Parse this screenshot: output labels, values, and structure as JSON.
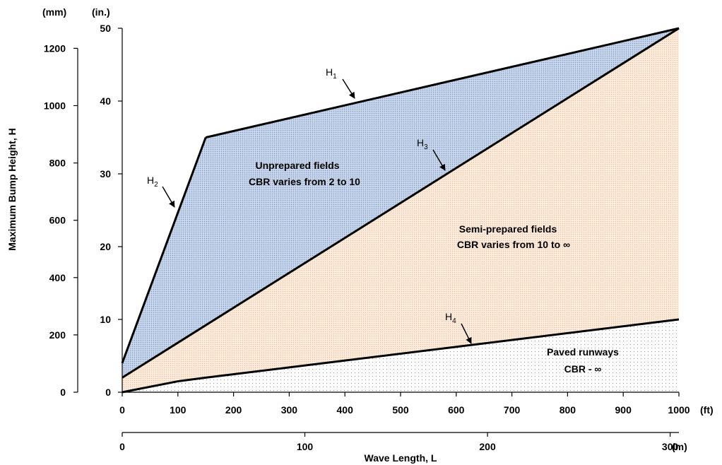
{
  "chart_data": {
    "type": "area",
    "x_unit_primary": "(ft)",
    "x_unit_secondary": "(m)",
    "y_unit_mm": "(mm)",
    "y_unit_in": "(in.)",
    "xlabel": "Wave Length, L",
    "ylabel": "Maximum Bump Height, H",
    "xlim_ft": [
      0,
      1000
    ],
    "ylim_in": [
      0,
      50
    ],
    "x_ticks_ft": [
      "0",
      "100",
      "200",
      "300",
      "400",
      "500",
      "600",
      "700",
      "800",
      "900",
      "1000"
    ],
    "x_ticks_m": [
      "0",
      "100",
      "200",
      "300"
    ],
    "y_ticks_in": [
      "0",
      "10",
      "20",
      "30",
      "40",
      "50"
    ],
    "y_ticks_mm": [
      "0",
      "200",
      "400",
      "600",
      "800",
      "1000",
      "1200"
    ],
    "series": [
      {
        "name": "H1",
        "label_main": "H",
        "label_sub": "1",
        "x": [
          150,
          1000
        ],
        "y": [
          35,
          50
        ]
      },
      {
        "name": "H2",
        "label_main": "H",
        "label_sub": "2",
        "x": [
          0,
          150
        ],
        "y": [
          4,
          35
        ]
      },
      {
        "name": "H3",
        "label_main": "H",
        "label_sub": "3",
        "x": [
          0,
          1000
        ],
        "y": [
          2,
          50
        ]
      },
      {
        "name": "H4",
        "label_main": "H",
        "label_sub": "4",
        "x": [
          0,
          100,
          150,
          1000
        ],
        "y": [
          0,
          1.5,
          2,
          10
        ]
      }
    ],
    "regions": [
      {
        "line1": "Unprepared fields",
        "line2": "CBR varies from 2 to 10",
        "fill": "#c6d5ea"
      },
      {
        "line1": "Semi-prepared fields",
        "line2": "CBR varies from 10 to ∞",
        "fill": "#fbe6d4"
      },
      {
        "line1": "Paved runways",
        "line2": "CBR - ∞",
        "fill": "#ffffff"
      }
    ]
  }
}
